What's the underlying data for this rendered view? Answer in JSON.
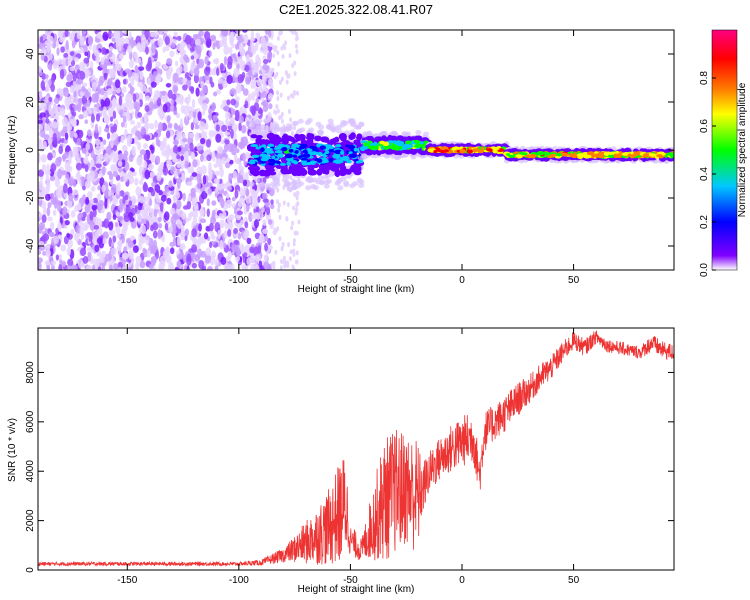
{
  "title": "C2E1.2025.322.08.41.R07",
  "chart_data": [
    {
      "type": "heatmap",
      "xlabel": "Height of straight line (km)",
      "ylabel": "Frequency (Hz)",
      "xlim": [
        -190,
        95
      ],
      "ylim": [
        -50,
        50
      ],
      "xticks": [
        -150,
        -100,
        -50,
        0,
        50
      ],
      "yticks": [
        -40,
        -20,
        0,
        20,
        40
      ],
      "colorbar": {
        "label": "Normalized spectral amplitude",
        "range": [
          0,
          1
        ],
        "ticks": [
          0,
          0.2,
          0.4,
          0.6,
          0.8
        ],
        "tick_labels": [
          "0.0",
          "0.2",
          "0.4",
          "0.6",
          "0.8"
        ],
        "colormap": [
          "#ffffff",
          "#8000ff",
          "#0000ff",
          "#00c8ff",
          "#00ff00",
          "#ffff00",
          "#ff8000",
          "#ff0000",
          "#ff0080"
        ]
      },
      "features": [
        {
          "region": "noise",
          "x_range": [
            -190,
            -85
          ],
          "freq_range": [
            -50,
            50
          ],
          "amplitude": 0.1
        },
        {
          "region": "signal-onset",
          "x_range": [
            -95,
            -45
          ],
          "center_freq": -2,
          "freq_spread": 8,
          "amplitude": 0.4
        },
        {
          "region": "signal-mid",
          "x_range": [
            -45,
            -15
          ],
          "center_freq": 2,
          "freq_spread": 3,
          "amplitude": 0.55
        },
        {
          "region": "signal-peak",
          "x_range": [
            -15,
            20
          ],
          "center_freq": 0,
          "freq_spread": 1.5,
          "amplitude": 0.85
        },
        {
          "region": "signal-steady",
          "x_range": [
            20,
            95
          ],
          "center_freq": -2,
          "freq_spread": 1.5,
          "amplitude": 0.75
        }
      ]
    },
    {
      "type": "line",
      "xlabel": "Height of straight line (km)",
      "ylabel": "SNR (10 * v/v)",
      "xlim": [
        -190,
        95
      ],
      "ylim": [
        0,
        9800
      ],
      "xticks": [
        -150,
        -100,
        -50,
        0,
        50
      ],
      "yticks": [
        0,
        2000,
        4000,
        6000,
        8000
      ],
      "color": "#ee3333",
      "series": [
        {
          "name": "SNR",
          "x": [
            -190,
            -150,
            -100,
            -90,
            -80,
            -70,
            -60,
            -55,
            -52,
            -50,
            -45,
            -40,
            -35,
            -30,
            -25,
            -20,
            -18,
            -15,
            -10,
            -5,
            0,
            5,
            8,
            10,
            15,
            20,
            25,
            30,
            35,
            40,
            45,
            50,
            55,
            60,
            65,
            70,
            75,
            80,
            85,
            90,
            95
          ],
          "values": [
            250,
            250,
            250,
            300,
            600,
            1100,
            1700,
            2300,
            2700,
            1200,
            800,
            1900,
            2800,
            3200,
            3300,
            3000,
            3200,
            3900,
            4500,
            4900,
            5200,
            5400,
            3800,
            5600,
            6000,
            6400,
            6900,
            7300,
            7800,
            8200,
            8800,
            9300,
            9000,
            9450,
            9100,
            9000,
            8900,
            8800,
            9200,
            8900,
            8800
          ],
          "noise": [
            0.3,
            0.3,
            0.3,
            0.4,
            0.5,
            0.8,
            0.9,
            0.9,
            0.8,
            0.5,
            0.6,
            0.8,
            0.9,
            0.8,
            0.7,
            0.8,
            0.35,
            0.22,
            0.2,
            0.2,
            0.2,
            0.2,
            0.2,
            0.15,
            0.12,
            0.12,
            0.1,
            0.08,
            0.07,
            0.06,
            0.05,
            0.04,
            0.04,
            0.03,
            0.03,
            0.03,
            0.03,
            0.03,
            0.04,
            0.04,
            0.04
          ]
        }
      ]
    }
  ]
}
